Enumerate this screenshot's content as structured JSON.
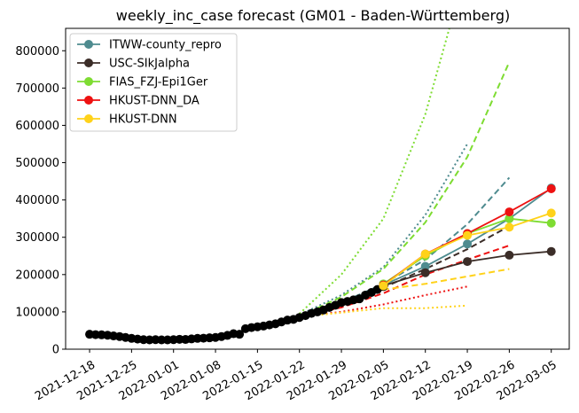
{
  "chart_data": {
    "type": "line",
    "title": "weekly_inc_case forecast (GM01 - Baden-Württemberg)",
    "xlabel": "",
    "ylabel": "",
    "x_range": [
      "2021-12-14",
      "2022-03-08"
    ],
    "ylim": [
      0,
      860000
    ],
    "y_ticks": [
      0,
      100000,
      200000,
      300000,
      400000,
      500000,
      600000,
      700000,
      800000
    ],
    "x_ticks": [
      "2021-12-18",
      "2021-12-25",
      "2022-01-01",
      "2022-01-08",
      "2022-01-15",
      "2022-01-22",
      "2022-01-29",
      "2022-02-05",
      "2022-02-12",
      "2022-02-19",
      "2022-02-26",
      "2022-03-05"
    ],
    "legend_position": "top-left",
    "grid": false,
    "observed": {
      "color": "#000000",
      "points": [
        [
          "2021-12-18",
          40000
        ],
        [
          "2021-12-19",
          39000
        ],
        [
          "2021-12-20",
          38500
        ],
        [
          "2021-12-21",
          37500
        ],
        [
          "2021-12-22",
          35500
        ],
        [
          "2021-12-23",
          34000
        ],
        [
          "2021-12-24",
          31500
        ],
        [
          "2021-12-25",
          29000
        ],
        [
          "2021-12-26",
          27000
        ],
        [
          "2021-12-27",
          25500
        ],
        [
          "2021-12-28",
          25000
        ],
        [
          "2021-12-29",
          25500
        ],
        [
          "2021-12-30",
          25000
        ],
        [
          "2021-12-31",
          25000
        ],
        [
          "2022-01-01",
          25500
        ],
        [
          "2022-01-02",
          26500
        ],
        [
          "2022-01-03",
          26000
        ],
        [
          "2022-01-04",
          27500
        ],
        [
          "2022-01-05",
          29000
        ],
        [
          "2022-01-06",
          29500
        ],
        [
          "2022-01-07",
          30500
        ],
        [
          "2022-01-08",
          31500
        ],
        [
          "2022-01-09",
          34000
        ],
        [
          "2022-01-10",
          37000
        ],
        [
          "2022-01-11",
          41500
        ],
        [
          "2022-01-12",
          40000
        ],
        [
          "2022-01-13",
          55000
        ],
        [
          "2022-01-14",
          58000
        ],
        [
          "2022-01-15",
          60000
        ],
        [
          "2022-01-16",
          62000
        ],
        [
          "2022-01-17",
          65000
        ],
        [
          "2022-01-18",
          68000
        ],
        [
          "2022-01-19",
          73000
        ],
        [
          "2022-01-20",
          78000
        ],
        [
          "2022-01-21",
          80000
        ],
        [
          "2022-01-22",
          85000
        ],
        [
          "2022-01-23",
          90000
        ],
        [
          "2022-01-24",
          96000
        ],
        [
          "2022-01-25",
          100000
        ],
        [
          "2022-01-26",
          105000
        ],
        [
          "2022-01-27",
          112000
        ],
        [
          "2022-01-28",
          118000
        ],
        [
          "2022-01-29",
          125000
        ],
        [
          "2022-01-30",
          128000
        ],
        [
          "2022-01-31",
          132000
        ],
        [
          "2022-02-01",
          135000
        ],
        [
          "2022-02-02",
          145000
        ],
        [
          "2022-02-03",
          152000
        ],
        [
          "2022-02-04",
          160000
        ],
        [
          "2022-02-05",
          168000
        ]
      ]
    },
    "series": [
      {
        "name": "ITWW-county_repro",
        "color": "#4e8b8f",
        "actual": [
          [
            "2022-02-05",
            172000
          ],
          [
            "2022-02-12",
            222000
          ],
          [
            "2022-02-19",
            282000
          ],
          [
            "2022-02-26",
            350000
          ],
          [
            "2022-03-05",
            432000
          ]
        ],
        "dashed": [
          [
            "2022-01-22",
            90000
          ],
          [
            "2022-01-29",
            125000
          ],
          [
            "2022-02-05",
            175000
          ],
          [
            "2022-02-12",
            240000
          ],
          [
            "2022-02-19",
            335000
          ],
          [
            "2022-02-26",
            460000
          ]
        ],
        "dotted": [
          [
            "2022-01-22",
            92000
          ],
          [
            "2022-01-29",
            145000
          ],
          [
            "2022-02-05",
            220000
          ],
          [
            "2022-02-12",
            360000
          ],
          [
            "2022-02-19",
            550000
          ]
        ]
      },
      {
        "name": "USC-SIkJalpha",
        "color": "#3b2d28",
        "actual": [
          [
            "2022-02-05",
            170000
          ],
          [
            "2022-02-12",
            205000
          ],
          [
            "2022-02-19",
            235000
          ],
          [
            "2022-02-26",
            252000
          ],
          [
            "2022-03-05",
            262000
          ]
        ],
        "dashed": [
          [
            "2022-01-22",
            90000
          ],
          [
            "2022-01-29",
            122000
          ],
          [
            "2022-02-05",
            165000
          ],
          [
            "2022-02-12",
            215000
          ],
          [
            "2022-02-19",
            268000
          ],
          [
            "2022-02-26",
            330000
          ]
        ],
        "dotted": []
      },
      {
        "name": "FIAS_FZJ-Epi1Ger",
        "color": "#7edc32",
        "actual": [
          [
            "2022-02-05",
            175000
          ],
          [
            "2022-02-12",
            250000
          ],
          [
            "2022-02-19",
            310000
          ],
          [
            "2022-02-26",
            350000
          ],
          [
            "2022-03-05",
            338000
          ]
        ],
        "dashed": [
          [
            "2022-01-22",
            88000
          ],
          [
            "2022-01-29",
            140000
          ],
          [
            "2022-02-05",
            215000
          ],
          [
            "2022-02-12",
            340000
          ],
          [
            "2022-02-19",
            515000
          ],
          [
            "2022-02-26",
            770000
          ]
        ],
        "dotted": [
          [
            "2022-01-22",
            95000
          ],
          [
            "2022-01-29",
            200000
          ],
          [
            "2022-02-05",
            350000
          ],
          [
            "2022-02-12",
            630000
          ],
          [
            "2022-02-16",
            860000
          ]
        ]
      },
      {
        "name": "HKUST-DNN_DA",
        "color": "#ee1111",
        "actual": [
          [
            "2022-02-05",
            172000
          ],
          [
            "2022-02-12",
            255000
          ],
          [
            "2022-02-19",
            310000
          ],
          [
            "2022-02-26",
            368000
          ],
          [
            "2022-03-05",
            430000
          ]
        ],
        "dashed": [
          [
            "2022-01-22",
            88000
          ],
          [
            "2022-01-29",
            112000
          ],
          [
            "2022-02-05",
            150000
          ],
          [
            "2022-02-12",
            200000
          ],
          [
            "2022-02-19",
            240000
          ],
          [
            "2022-02-26",
            278000
          ]
        ],
        "dotted": [
          [
            "2022-01-22",
            88000
          ],
          [
            "2022-01-29",
            100000
          ],
          [
            "2022-02-05",
            120000
          ],
          [
            "2022-02-12",
            145000
          ],
          [
            "2022-02-19",
            168000
          ]
        ]
      },
      {
        "name": "HKUST-DNN",
        "color": "#ffd21a",
        "actual": [
          [
            "2022-02-05",
            170000
          ],
          [
            "2022-02-12",
            255000
          ],
          [
            "2022-02-19",
            305000
          ],
          [
            "2022-02-26",
            327000
          ],
          [
            "2022-03-05",
            365000
          ]
        ],
        "dashed": [
          [
            "2022-01-22",
            86000
          ],
          [
            "2022-01-29",
            120000
          ],
          [
            "2022-02-05",
            160000
          ],
          [
            "2022-02-12",
            175000
          ],
          [
            "2022-02-19",
            195000
          ],
          [
            "2022-02-26",
            215000
          ]
        ],
        "dotted": [
          [
            "2022-01-22",
            86000
          ],
          [
            "2022-01-29",
            98000
          ],
          [
            "2022-02-05",
            110000
          ],
          [
            "2022-02-12",
            110000
          ],
          [
            "2022-02-19",
            117000
          ]
        ]
      }
    ]
  }
}
